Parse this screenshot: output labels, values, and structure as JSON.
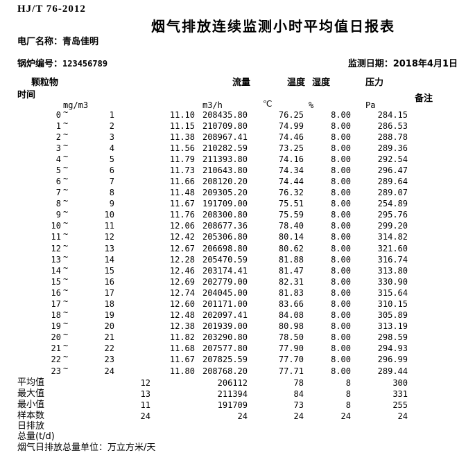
{
  "document": {
    "standard_code": "HJ/T 76-2012",
    "title": "烟气排放连续监测小时平均值日报表",
    "plant_label": "电厂名称：",
    "plant_name": "青岛佳明",
    "boiler_label": "锅炉编号：",
    "boiler_no": "123456789",
    "date_label": "监测日期：",
    "date_value": "2018年4月1日"
  },
  "table": {
    "tilde": "~",
    "headers": {
      "time": "时间",
      "particulate": "颗粒物",
      "flow": "流量",
      "temperature": "温度",
      "humidity": "湿度",
      "pressure": "压力",
      "remark": "备注"
    },
    "units": {
      "particulate": "mg/m3",
      "flow": "m3/h",
      "temperature": "℃",
      "humidity": "%",
      "pressure": "Pa"
    },
    "rows": [
      {
        "start": "0",
        "end": "1",
        "pm": "11.10",
        "flow": "208435.80",
        "temp": "76.25",
        "hum": "8.00",
        "press": "284.15"
      },
      {
        "start": "1",
        "end": "2",
        "pm": "11.15",
        "flow": "210709.80",
        "temp": "74.99",
        "hum": "8.00",
        "press": "286.53"
      },
      {
        "start": "2",
        "end": "3",
        "pm": "11.38",
        "flow": "208967.41",
        "temp": "74.46",
        "hum": "8.00",
        "press": "288.78"
      },
      {
        "start": "3",
        "end": "4",
        "pm": "11.56",
        "flow": "210282.59",
        "temp": "73.25",
        "hum": "8.00",
        "press": "289.36"
      },
      {
        "start": "4",
        "end": "5",
        "pm": "11.79",
        "flow": "211393.80",
        "temp": "74.16",
        "hum": "8.00",
        "press": "292.54"
      },
      {
        "start": "5",
        "end": "6",
        "pm": "11.73",
        "flow": "210643.80",
        "temp": "74.34",
        "hum": "8.00",
        "press": "296.47"
      },
      {
        "start": "6",
        "end": "7",
        "pm": "11.66",
        "flow": "208120.20",
        "temp": "74.44",
        "hum": "8.00",
        "press": "289.64"
      },
      {
        "start": "7",
        "end": "8",
        "pm": "11.48",
        "flow": "209305.20",
        "temp": "76.32",
        "hum": "8.00",
        "press": "289.07"
      },
      {
        "start": "8",
        "end": "9",
        "pm": "11.67",
        "flow": "191709.00",
        "temp": "75.51",
        "hum": "8.00",
        "press": "254.89"
      },
      {
        "start": "9",
        "end": "10",
        "pm": "11.76",
        "flow": "208300.80",
        "temp": "75.59",
        "hum": "8.00",
        "press": "295.76"
      },
      {
        "start": "10",
        "end": "11",
        "pm": "12.06",
        "flow": "208677.36",
        "temp": "78.40",
        "hum": "8.00",
        "press": "299.20"
      },
      {
        "start": "11",
        "end": "12",
        "pm": "12.42",
        "flow": "205306.80",
        "temp": "80.14",
        "hum": "8.00",
        "press": "314.82"
      },
      {
        "start": "12",
        "end": "13",
        "pm": "12.67",
        "flow": "206698.80",
        "temp": "80.62",
        "hum": "8.00",
        "press": "321.60"
      },
      {
        "start": "13",
        "end": "14",
        "pm": "12.28",
        "flow": "205470.59",
        "temp": "81.88",
        "hum": "8.00",
        "press": "316.74"
      },
      {
        "start": "14",
        "end": "15",
        "pm": "12.46",
        "flow": "203174.41",
        "temp": "81.47",
        "hum": "8.00",
        "press": "313.80"
      },
      {
        "start": "15",
        "end": "16",
        "pm": "12.69",
        "flow": "202779.00",
        "temp": "82.31",
        "hum": "8.00",
        "press": "330.90"
      },
      {
        "start": "16",
        "end": "17",
        "pm": "12.74",
        "flow": "204045.00",
        "temp": "81.83",
        "hum": "8.00",
        "press": "315.64"
      },
      {
        "start": "17",
        "end": "18",
        "pm": "12.60",
        "flow": "201171.00",
        "temp": "83.66",
        "hum": "8.00",
        "press": "310.15"
      },
      {
        "start": "18",
        "end": "19",
        "pm": "12.48",
        "flow": "202097.41",
        "temp": "84.08",
        "hum": "8.00",
        "press": "305.89"
      },
      {
        "start": "19",
        "end": "20",
        "pm": "12.38",
        "flow": "201939.00",
        "temp": "80.98",
        "hum": "8.00",
        "press": "313.19"
      },
      {
        "start": "20",
        "end": "21",
        "pm": "11.82",
        "flow": "203290.80",
        "temp": "78.50",
        "hum": "8.00",
        "press": "298.59"
      },
      {
        "start": "21",
        "end": "22",
        "pm": "11.68",
        "flow": "207577.80",
        "temp": "77.90",
        "hum": "8.00",
        "press": "294.93"
      },
      {
        "start": "22",
        "end": "23",
        "pm": "11.67",
        "flow": "207825.59",
        "temp": "77.70",
        "hum": "8.00",
        "press": "296.99"
      },
      {
        "start": "23",
        "end": "24",
        "pm": "11.80",
        "flow": "208768.20",
        "temp": "77.71",
        "hum": "8.00",
        "press": "289.44"
      }
    ],
    "summary": [
      {
        "label": "平均值",
        "pm": "12",
        "flow": "206112",
        "temp": "78",
        "hum": "8",
        "press": "300"
      },
      {
        "label": "最大值",
        "pm": "13",
        "flow": "211394",
        "temp": "84",
        "hum": "8",
        "press": "331"
      },
      {
        "label": "最小值",
        "pm": "11",
        "flow": "191709",
        "temp": "73",
        "hum": "8",
        "press": "255"
      },
      {
        "label": "样本数",
        "pm": "24",
        "flow": "24",
        "temp": "24",
        "hum": "24",
        "press": "24"
      }
    ],
    "footer": {
      "daily_emission_line1": "日排放",
      "daily_emission_line2": "总量(t/d)",
      "total_unit_note": "烟气日排放总量单位：万立方米/天"
    }
  }
}
